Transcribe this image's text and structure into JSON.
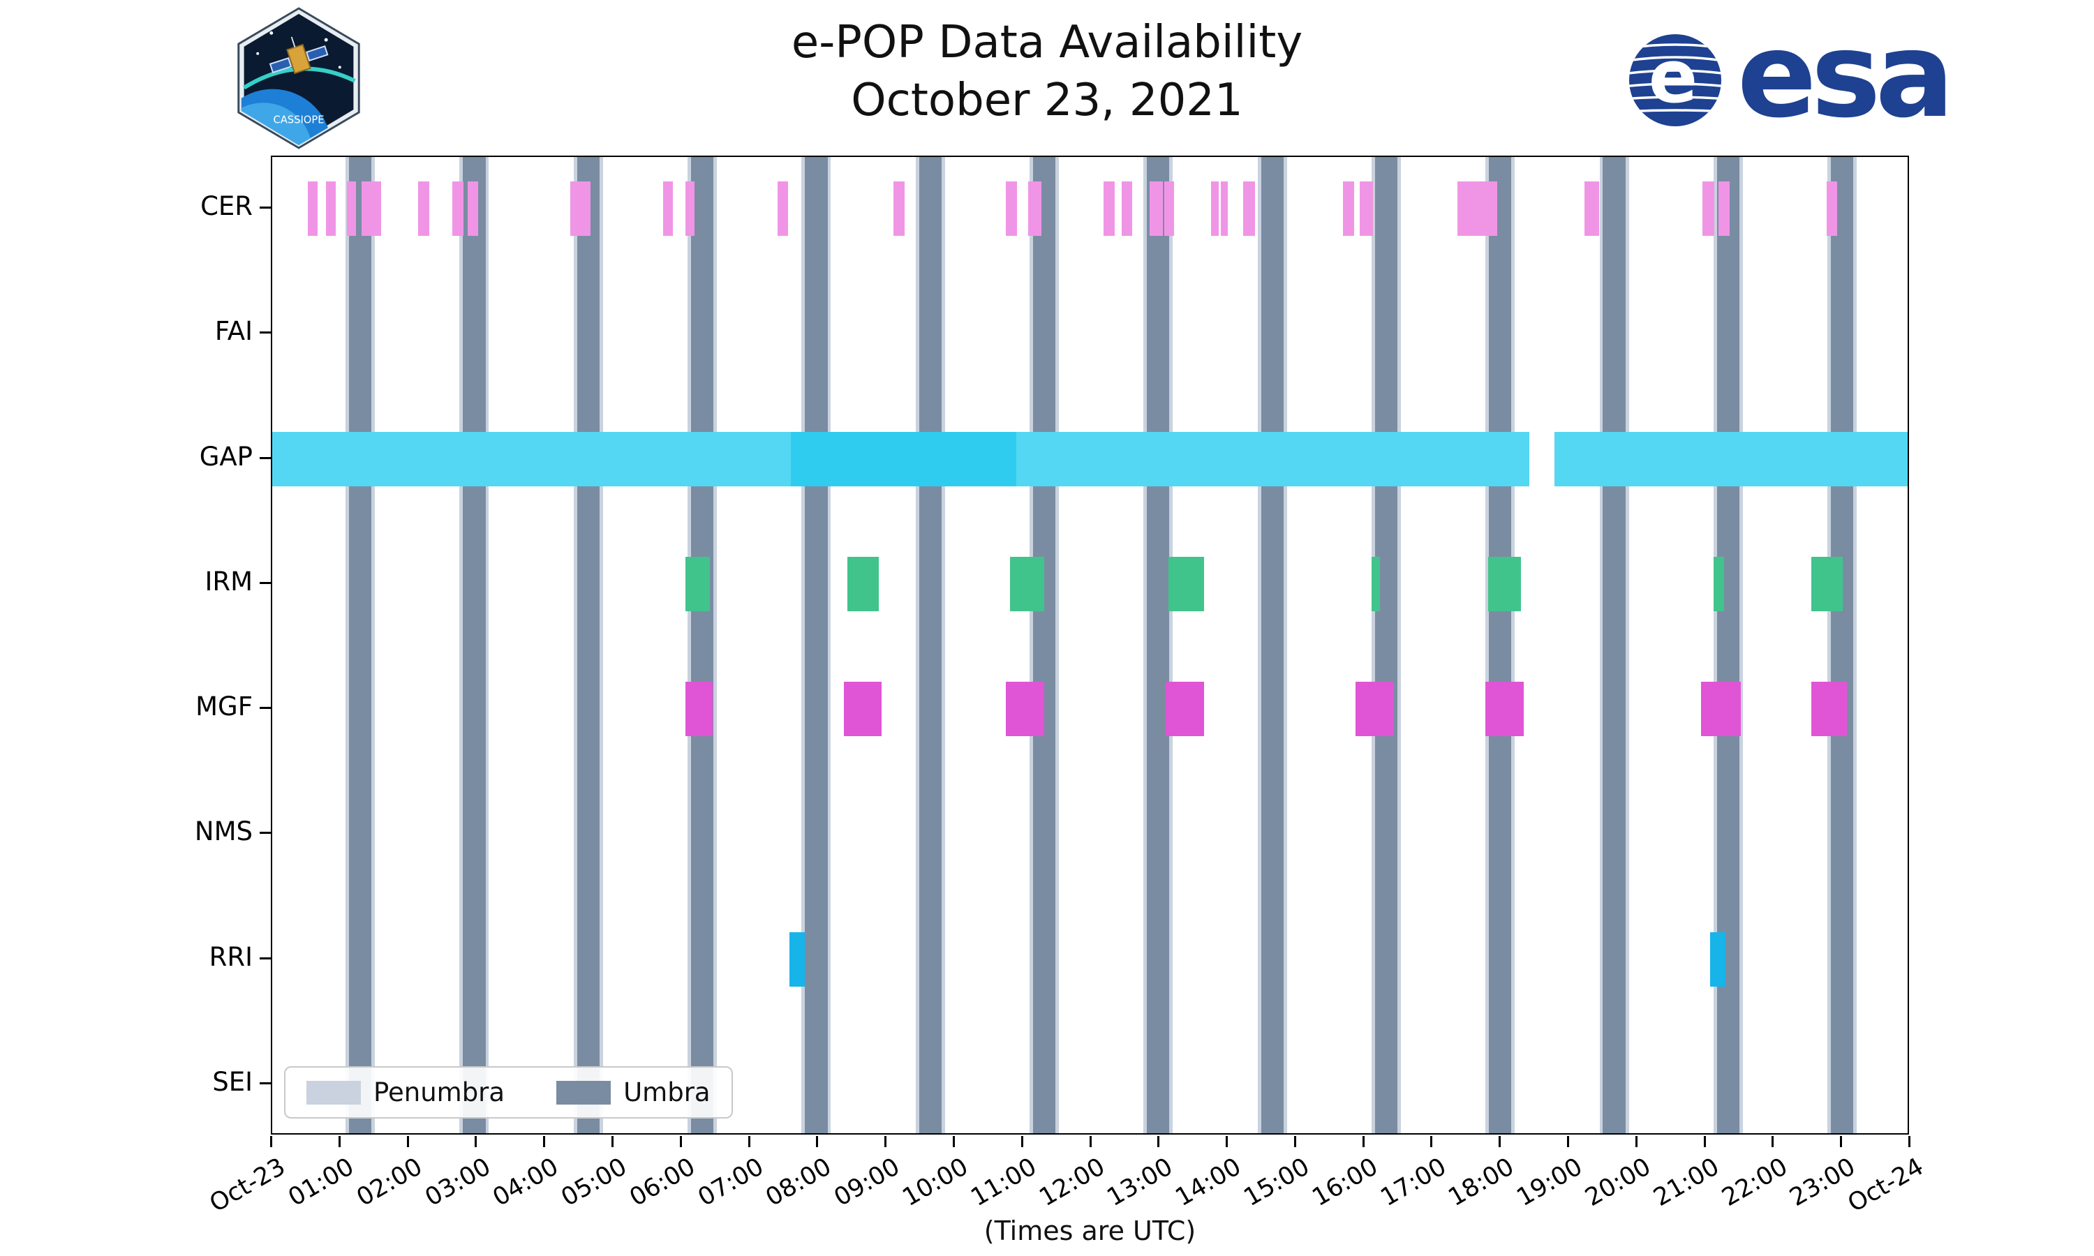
{
  "header": {
    "esa_text": "esa",
    "patch_text": "CASSIOPE"
  },
  "chart_data": {
    "type": "timeline",
    "title": "e-POP Data Availability",
    "subtitle": "October 23, 2021",
    "xlabel": "(Times are UTC)",
    "x_range_hours": [
      0,
      24
    ],
    "x_tick_labels": [
      "Oct-23",
      "01:00",
      "02:00",
      "03:00",
      "04:00",
      "05:00",
      "06:00",
      "07:00",
      "08:00",
      "09:00",
      "10:00",
      "11:00",
      "12:00",
      "13:00",
      "14:00",
      "15:00",
      "16:00",
      "17:00",
      "18:00",
      "19:00",
      "20:00",
      "21:00",
      "22:00",
      "23:00",
      "Oct-24"
    ],
    "rows": [
      "CER",
      "FAI",
      "GAP",
      "IRM",
      "MGF",
      "NMS",
      "RRI",
      "SEI"
    ],
    "shadow": {
      "penumbra_color": "#c9d2de",
      "umbra_color": "#7a8ca2",
      "penumbra_half_width_hours": 0.215,
      "umbra_half_width_hours": 0.165,
      "centers_hours": [
        1.29,
        2.96,
        4.63,
        6.3,
        7.97,
        9.64,
        11.31,
        12.98,
        14.65,
        16.32,
        17.99,
        19.66,
        21.33,
        23.0
      ]
    },
    "series": [
      {
        "row": "CER",
        "color": "#f095e6",
        "intervals": [
          [
            0.52,
            0.66
          ],
          [
            0.79,
            0.93
          ],
          [
            1.09,
            1.23
          ],
          [
            1.31,
            1.6
          ],
          [
            2.14,
            2.3
          ],
          [
            2.64,
            2.8
          ],
          [
            2.86,
            3.02
          ],
          [
            4.37,
            4.66
          ],
          [
            5.73,
            5.87
          ],
          [
            6.05,
            6.19
          ],
          [
            7.4,
            7.56
          ],
          [
            9.1,
            9.26
          ],
          [
            10.75,
            10.91
          ],
          [
            11.07,
            11.27
          ],
          [
            12.18,
            12.34
          ],
          [
            12.44,
            12.6
          ],
          [
            12.85,
            13.05
          ],
          [
            13.07,
            13.21
          ],
          [
            13.75,
            13.87
          ],
          [
            13.9,
            14.0
          ],
          [
            14.22,
            14.4
          ],
          [
            15.69,
            15.85
          ],
          [
            15.93,
            16.13
          ],
          [
            17.36,
            17.95
          ],
          [
            19.22,
            19.44
          ],
          [
            20.95,
            21.13
          ],
          [
            21.19,
            21.35
          ],
          [
            22.77,
            22.93
          ]
        ]
      },
      {
        "row": "GAP",
        "color": "#53d7f2",
        "intervals": [
          [
            0,
            18.42
          ],
          [
            18.78,
            24
          ]
        ],
        "overlays": [
          {
            "color": "#2fccf0",
            "interval": [
              7.6,
              10.9
            ]
          }
        ]
      },
      {
        "row": "IRM",
        "color": "#40c48c",
        "intervals": [
          [
            6.05,
            6.41
          ],
          [
            8.43,
            8.89
          ],
          [
            10.81,
            11.31
          ],
          [
            13.13,
            13.65
          ],
          [
            16.11,
            16.23
          ],
          [
            17.81,
            18.29
          ],
          [
            21.12,
            21.27
          ],
          [
            22.55,
            23.01
          ]
        ]
      },
      {
        "row": "MGF",
        "color": "#e055d5",
        "intervals": [
          [
            6.05,
            6.45
          ],
          [
            8.37,
            8.93
          ],
          [
            10.75,
            11.31
          ],
          [
            13.09,
            13.65
          ],
          [
            15.87,
            16.43
          ],
          [
            17.77,
            18.33
          ],
          [
            20.93,
            21.52
          ],
          [
            22.55,
            23.07
          ]
        ]
      },
      {
        "row": "RRI",
        "color": "#17b4e9",
        "intervals": [
          [
            7.58,
            7.8
          ],
          [
            21.07,
            21.29
          ]
        ]
      }
    ],
    "legend": [
      {
        "label": "Penumbra",
        "color": "#c9d2de"
      },
      {
        "label": "Umbra",
        "color": "#7a8ca2"
      }
    ]
  }
}
